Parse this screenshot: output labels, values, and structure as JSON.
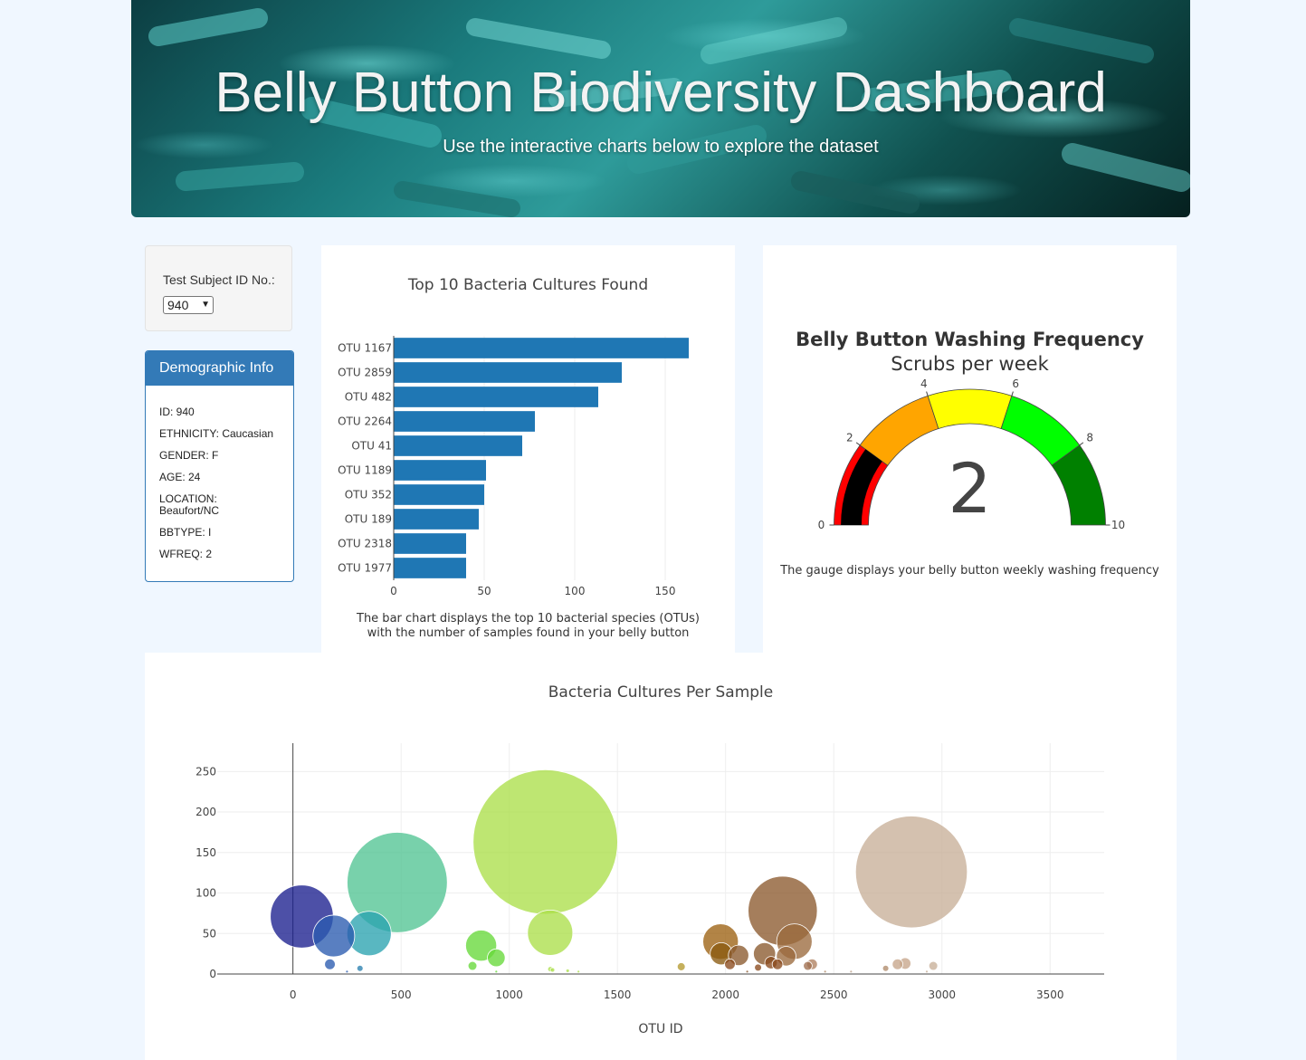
{
  "header": {
    "title": "Belly Button Biodiversity Dashboard",
    "subtitle": "Use the interactive charts below to explore the dataset"
  },
  "selector": {
    "label": "Test Subject ID No.:",
    "selected": "940"
  },
  "demographics": {
    "heading": "Demographic Info",
    "items": [
      "ID: 940",
      "ETHNICITY: Caucasian",
      "GENDER: F",
      "AGE: 24",
      "LOCATION: Beaufort/NC",
      "BBTYPE: I",
      "WFREQ: 2"
    ]
  },
  "bar_panel": {
    "caption_line1": "The bar chart displays the top 10 bacterial species (OTUs)",
    "caption_line2": "with the number of samples found in your belly button"
  },
  "gauge_panel": {
    "caption": "The gauge displays your belly button weekly washing frequency"
  },
  "chart_data": [
    {
      "type": "bar",
      "orientation": "horizontal",
      "title": "Top 10 Bacteria Cultures Found",
      "categories": [
        "OTU 1167",
        "OTU 2859",
        "OTU 482",
        "OTU 2264",
        "OTU 41",
        "OTU 1189",
        "OTU 352",
        "OTU 189",
        "OTU 2318",
        "OTU 1977"
      ],
      "values": [
        163,
        126,
        113,
        78,
        71,
        51,
        50,
        47,
        40,
        40
      ],
      "xlim": [
        0,
        175
      ],
      "xticks": [
        0,
        50,
        100,
        150
      ],
      "bar_color": "#1f77b4",
      "grid": true
    },
    {
      "type": "gauge",
      "title": "Belly Button Washing Frequency",
      "subtitle": "Scrubs per week",
      "value": 2,
      "range": [
        0,
        10
      ],
      "ticks": [
        0,
        2,
        4,
        6,
        8,
        10
      ],
      "steps": [
        {
          "range": [
            0,
            2
          ],
          "color": "#ff0000"
        },
        {
          "range": [
            2,
            4
          ],
          "color": "#ffa500"
        },
        {
          "range": [
            4,
            6
          ],
          "color": "#ffff00"
        },
        {
          "range": [
            6,
            8
          ],
          "color": "#00ff00"
        },
        {
          "range": [
            8,
            10
          ],
          "color": "#008000"
        }
      ],
      "bar_color": "#000000"
    },
    {
      "type": "scatter",
      "mode": "bubble",
      "title": "Bacteria Cultures Per Sample",
      "xlabel": "OTU ID",
      "ylabel": "",
      "xlim": [
        -350,
        3750
      ],
      "ylim": [
        0,
        285
      ],
      "xticks": [
        0,
        500,
        1000,
        1500,
        2000,
        2500,
        3000,
        3500
      ],
      "yticks": [
        0,
        50,
        100,
        150,
        200,
        250
      ],
      "grid": true,
      "points": [
        {
          "x": 41,
          "y": 71,
          "c": "#1b1f8e"
        },
        {
          "x": 189,
          "y": 47,
          "c": "#2a5bb0"
        },
        {
          "x": 352,
          "y": 50,
          "c": "#2aa3b0"
        },
        {
          "x": 482,
          "y": 113,
          "c": "#52c493"
        },
        {
          "x": 1167,
          "y": 163,
          "c": "#acdf4a"
        },
        {
          "x": 1189,
          "y": 51,
          "c": "#acdf4a"
        },
        {
          "x": 2264,
          "y": 78,
          "c": "#8c5a2e"
        },
        {
          "x": 2318,
          "y": 40,
          "c": "#9b6a3e"
        },
        {
          "x": 2859,
          "y": 126,
          "c": "#c8b099"
        },
        {
          "x": 1977,
          "y": 40,
          "c": "#9c6212"
        },
        {
          "x": 870,
          "y": 35,
          "c": "#66d93a"
        },
        {
          "x": 940,
          "y": 20,
          "c": "#66d93a"
        },
        {
          "x": 1980,
          "y": 25,
          "c": "#8a5a10"
        },
        {
          "x": 2060,
          "y": 23,
          "c": "#8a5a2e"
        },
        {
          "x": 2180,
          "y": 25,
          "c": "#8a5a2e"
        },
        {
          "x": 2280,
          "y": 22,
          "c": "#9b6a3e"
        },
        {
          "x": 2210,
          "y": 14,
          "c": "#8a4a1e"
        },
        {
          "x": 2020,
          "y": 12,
          "c": "#8a4a1e"
        },
        {
          "x": 2150,
          "y": 8,
          "c": "#8a4a1e"
        },
        {
          "x": 2240,
          "y": 12,
          "c": "#8a4a1e"
        },
        {
          "x": 2400,
          "y": 12,
          "c": "#b08060"
        },
        {
          "x": 2380,
          "y": 10,
          "c": "#a07050"
        },
        {
          "x": 1795,
          "y": 9,
          "c": "#b59a30"
        },
        {
          "x": 2795,
          "y": 12,
          "c": "#c7a58a"
        },
        {
          "x": 2830,
          "y": 13,
          "c": "#c7a58a"
        },
        {
          "x": 2960,
          "y": 10,
          "c": "#c8b099"
        },
        {
          "x": 2740,
          "y": 7,
          "c": "#b08a6a"
        },
        {
          "x": 830,
          "y": 10,
          "c": "#66d93a"
        },
        {
          "x": 171,
          "y": 12,
          "c": "#2a5bb0"
        },
        {
          "x": 310,
          "y": 7,
          "c": "#2a80b0"
        },
        {
          "x": 1190,
          "y": 6,
          "c": "#acdf4a"
        },
        {
          "x": 1270,
          "y": 4,
          "c": "#acdf4a"
        },
        {
          "x": 1200,
          "y": 5,
          "c": "#acdf4a"
        },
        {
          "x": 250,
          "y": 3,
          "c": "#2a5bb0"
        },
        {
          "x": 940,
          "y": 3,
          "c": "#66d93a"
        },
        {
          "x": 1320,
          "y": 3,
          "c": "#acdf4a"
        },
        {
          "x": 2580,
          "y": 3,
          "c": "#bba08a"
        },
        {
          "x": 2460,
          "y": 3,
          "c": "#b08a6a"
        },
        {
          "x": 2100,
          "y": 3,
          "c": "#8a5a2e"
        },
        {
          "x": 2930,
          "y": 3,
          "c": "#c8b099"
        }
      ]
    }
  ]
}
